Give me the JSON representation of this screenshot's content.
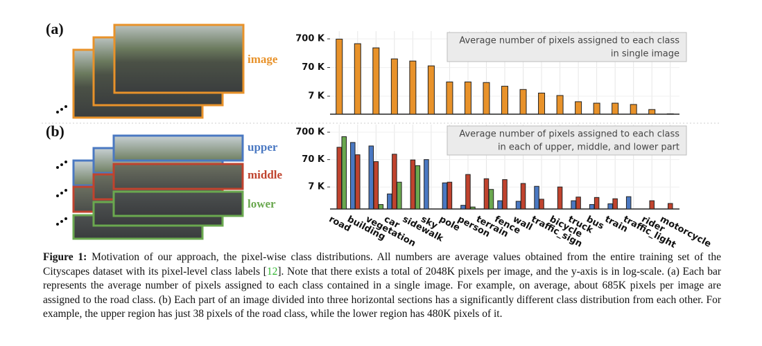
{
  "panel_labels": [
    "(a)",
    "(b)"
  ],
  "image_labels": {
    "image": "image",
    "upper": "upper",
    "middle": "middle",
    "lower": "lower"
  },
  "chart_data": [
    {
      "type": "bar",
      "log_scale": true,
      "color": "#e8922a",
      "annotation": [
        "Average number of pixels assigned to each class",
        "in single image"
      ],
      "values": [
        685000,
        475000,
        340000,
        140000,
        118000,
        80000,
        22000,
        22000,
        21000,
        15600,
        12000,
        9000,
        7400,
        4500,
        4000,
        4000,
        3600,
        2400,
        1700
      ],
      "ylim": [
        1650,
        1300000
      ],
      "yticks": [
        {
          "value": 7000,
          "label": "7 K"
        },
        {
          "value": 70000,
          "label": "70 K"
        },
        {
          "value": 700000,
          "label": "700 K"
        }
      ],
      "grid": true
    },
    {
      "type": "bar",
      "log_scale": true,
      "annotation": [
        "Average number of pixels assigned to each class",
        "in each of upper, middle, and lower part"
      ],
      "categories": [
        "road",
        "building",
        "vegetation",
        "car",
        "sidewalk",
        "sky",
        "pole",
        "person",
        "terrain",
        "fence",
        "wall",
        "traffic_sign",
        "bicycle",
        "truck",
        "bus",
        "train",
        "traffic_light",
        "rider",
        "motorcycle"
      ],
      "series": [
        {
          "name": "upper",
          "color": "#4a78c2",
          "values": [
            38,
            295000,
            220000,
            3900,
            null,
            70000,
            9900,
            1500,
            null,
            2200,
            2100,
            7400,
            null,
            2200,
            1600,
            1700,
            3100,
            null,
            null
          ]
        },
        {
          "name": "middle",
          "color": "#c0432e",
          "values": [
            197000,
            105000,
            59000,
            110000,
            68000,
            null,
            10500,
            20000,
            14000,
            13000,
            9400,
            2500,
            7000,
            3000,
            2900,
            2600,
            null,
            2200,
            1750
          ]
        },
        {
          "name": "lower",
          "color": "#6aa84f",
          "values": [
            480000,
            null,
            1600,
            10500,
            42000,
            null,
            null,
            1300,
            5700,
            null,
            null,
            null,
            null,
            null,
            null,
            null,
            null,
            null,
            null
          ]
        }
      ],
      "ylim": [
        1100,
        1330000
      ],
      "yticks": [
        {
          "value": 7000,
          "label": "7 K"
        },
        {
          "value": 70000,
          "label": "70 K"
        },
        {
          "value": 700000,
          "label": "700 K"
        }
      ],
      "grid": true
    }
  ],
  "caption": {
    "label": "Figure 1:",
    "before_ref": " Motivation of our approach, the pixel-wise class distributions. All numbers are average values obtained from the entire training set of the Cityscapes dataset with its pixel-level class labels [",
    "ref": "12",
    "after_ref": "]. Note that there exists a total of 2048K pixels per image, and the y-axis is in log-scale. (a) Each bar represents the average number of pixels assigned to each class contained in a single image. For example, on average, about 685K pixels per image are assigned to the road class. (b) Each part of an image divided into three horizontal sections has a significantly different class distribution from each other. For example, the upper region has just 38 pixels of the road class, while the lower region has 480K pixels of it."
  }
}
